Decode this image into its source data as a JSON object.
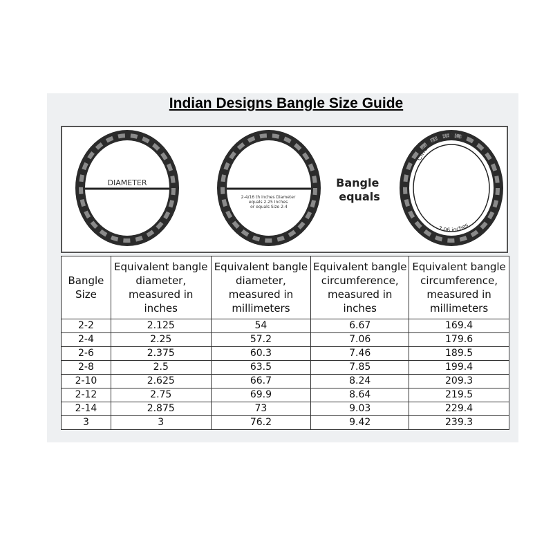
{
  "title": "Indian Designs Bangle Size Guide",
  "figure": {
    "diameter_label": "DIAMETER",
    "example_note": [
      "2-4/16 th inches Diameter",
      "equals 2.25 Inches",
      "or equals Size 2-4"
    ],
    "bangle_equals": [
      "Bangle",
      "equals"
    ],
    "circumference_label": "CIRCUMFERENCE",
    "circumference_value": "7.06 inches"
  },
  "table": {
    "headers": [
      "Bangle Size",
      "Equivalent bangle diameter, measured in inches",
      "Equivalent bangle diameter, measured in millimeters",
      "Equivalent bangle circumference, measured in inches",
      "Equivalent bangle circumference, measured in millimeters"
    ],
    "rows": [
      [
        "2-2",
        "2.125",
        "54",
        "6.67",
        "169.4"
      ],
      [
        "2-4",
        "2.25",
        "57.2",
        "7.06",
        "179.6"
      ],
      [
        "2-6",
        "2.375",
        "60.3",
        "7.46",
        "189.5"
      ],
      [
        "2-8",
        "2.5",
        "63.5",
        "7.85",
        "199.4"
      ],
      [
        "2-10",
        "2.625",
        "66.7",
        "8.24",
        "209.3"
      ],
      [
        "2-12",
        "2.75",
        "69.9",
        "8.64",
        "219.5"
      ],
      [
        "2-14",
        "2.875",
        "73",
        "9.03",
        "229.4"
      ],
      [
        "3",
        "3",
        "76.2",
        "9.42",
        "239.3"
      ]
    ]
  }
}
